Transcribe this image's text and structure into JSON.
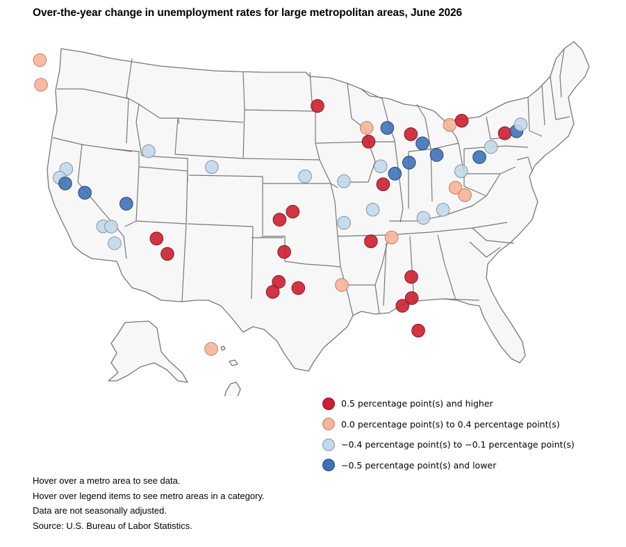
{
  "title": "Over-the-year change in unemployment rates for large metropolitan areas, June 2026",
  "legend": {
    "items": [
      {
        "key": "high",
        "label": "0.5 percentage point(s) and higher",
        "color": "#cc1f2f",
        "stroke": "#8a1520"
      },
      {
        "key": "mid_high",
        "label": "0.0 percentage point(s) to 0.4 percentage point(s)",
        "color": "#f6b49a",
        "stroke": "#c47d66"
      },
      {
        "key": "mid_low",
        "label": "−0.4 percentage point(s) to −0.1 percentage point(s)",
        "color": "#c3d8e9",
        "stroke": "#7f95a8"
      },
      {
        "key": "low",
        "label": "−0.5 percentage point(s) and lower",
        "color": "#3f71b6",
        "stroke": "#27477a"
      }
    ]
  },
  "notes": [
    "Hover over a metro area to see data.",
    "Hover over legend items to see metro areas in a category.",
    "Data are not seasonally adjusted.",
    "Source: U.S. Bureau of Labor Statistics."
  ],
  "map_data": {
    "icons": {
      "metro": "circle-marker-icon"
    },
    "metros": [
      {
        "cat": "mid_high",
        "lon": -122.33,
        "lat": 47.61
      },
      {
        "cat": "mid_high",
        "lon": -122.68,
        "lat": 45.52
      },
      {
        "cat": "mid_low",
        "lon": -121.49,
        "lat": 38.58
      },
      {
        "cat": "mid_low",
        "lon": -122.42,
        "lat": 37.77
      },
      {
        "cat": "low",
        "lon": -121.89,
        "lat": 37.34
      },
      {
        "cat": "low",
        "lon": -119.79,
        "lat": 36.74
      },
      {
        "cat": "mid_low",
        "lon": -118.24,
        "lat": 34.05
      },
      {
        "cat": "mid_low",
        "lon": -117.29,
        "lat": 34.11
      },
      {
        "cat": "mid_low",
        "lon": -117.16,
        "lat": 32.72
      },
      {
        "cat": "low",
        "lon": -115.14,
        "lat": 36.17
      },
      {
        "cat": "mid_low",
        "lon": -111.89,
        "lat": 40.76
      },
      {
        "cat": "high",
        "lon": -112.07,
        "lat": 33.45
      },
      {
        "cat": "high",
        "lon": -110.97,
        "lat": 32.22
      },
      {
        "cat": "mid_low",
        "lon": -104.99,
        "lat": 39.74
      },
      {
        "cat": "high",
        "lon": -93.27,
        "lat": 44.98
      },
      {
        "cat": "high",
        "lon": -97.52,
        "lat": 35.47
      },
      {
        "cat": "high",
        "lon": -95.99,
        "lat": 36.15
      },
      {
        "cat": "high",
        "lon": -97.03,
        "lat": 32.78
      },
      {
        "cat": "high",
        "lon": -95.37,
        "lat": 29.76
      },
      {
        "cat": "high",
        "lon": -97.74,
        "lat": 30.27
      },
      {
        "cat": "high",
        "lon": -98.49,
        "lat": 29.42
      },
      {
        "cat": "mid_low",
        "lon": -94.58,
        "lat": 39.1
      },
      {
        "cat": "mid_low",
        "lon": -90.2,
        "lat": 38.63
      },
      {
        "cat": "mid_high",
        "lon": -90.07,
        "lat": 29.95
      },
      {
        "cat": "mid_low",
        "lon": -90.05,
        "lat": 35.15
      },
      {
        "cat": "mid_low",
        "lon": -86.78,
        "lat": 36.16
      },
      {
        "cat": "high",
        "lon": -86.8,
        "lat": 33.52
      },
      {
        "cat": "mid_high",
        "lon": -84.39,
        "lat": 33.75
      },
      {
        "cat": "mid_high",
        "lon": -87.91,
        "lat": 43.04
      },
      {
        "cat": "high",
        "lon": -87.63,
        "lat": 41.88
      },
      {
        "cat": "mid_low",
        "lon": -86.16,
        "lat": 39.77
      },
      {
        "cat": "low",
        "lon": -84.51,
        "lat": 39.1
      },
      {
        "cat": "high",
        "lon": -85.76,
        "lat": 38.25
      },
      {
        "cat": "low",
        "lon": -85.67,
        "lat": 42.96
      },
      {
        "cat": "high",
        "lon": -83.05,
        "lat": 42.33
      },
      {
        "cat": "low",
        "lon": -81.69,
        "lat": 41.5
      },
      {
        "cat": "low",
        "lon": -83.0,
        "lat": 39.96
      },
      {
        "cat": "low",
        "lon": -79.99,
        "lat": 40.44
      },
      {
        "cat": "mid_high",
        "lon": -78.88,
        "lat": 42.89
      },
      {
        "cat": "high",
        "lon": -77.61,
        "lat": 43.16
      },
      {
        "cat": "mid_low",
        "lon": -77.04,
        "lat": 38.9
      },
      {
        "cat": "mid_high",
        "lon": -77.46,
        "lat": 37.54
      },
      {
        "cat": "mid_high",
        "lon": -76.29,
        "lat": 36.85
      },
      {
        "cat": "low",
        "lon": -75.17,
        "lat": 39.95
      },
      {
        "cat": "mid_low",
        "lon": -74.01,
        "lat": 40.71
      },
      {
        "cat": "high",
        "lon": -72.68,
        "lat": 41.76
      },
      {
        "cat": "low",
        "lon": -71.41,
        "lat": 41.82
      },
      {
        "cat": "mid_low",
        "lon": -71.06,
        "lat": 42.36
      },
      {
        "cat": "mid_low",
        "lon": -78.64,
        "lat": 35.78
      },
      {
        "cat": "mid_low",
        "lon": -80.84,
        "lat": 35.23
      },
      {
        "cat": "high",
        "lon": -81.66,
        "lat": 30.33
      },
      {
        "cat": "high",
        "lon": -81.38,
        "lat": 28.54
      },
      {
        "cat": "high",
        "lon": -82.46,
        "lat": 27.95
      },
      {
        "cat": "high",
        "lon": -80.19,
        "lat": 25.76
      },
      {
        "cat": "mid_high",
        "lon": -157.86,
        "lat": 21.31
      }
    ]
  }
}
